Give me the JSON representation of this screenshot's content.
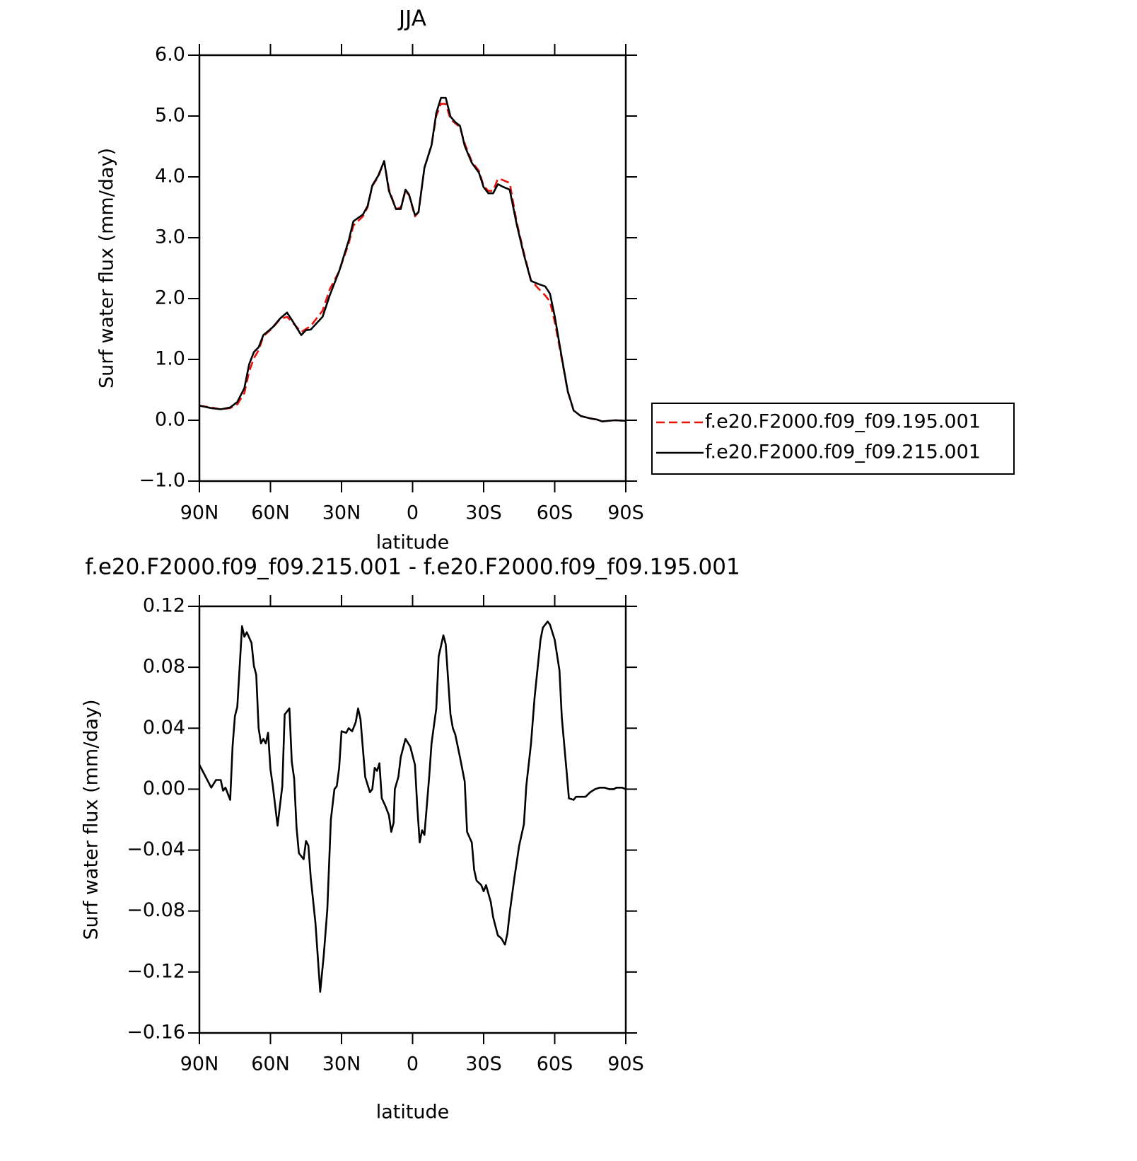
{
  "chart_data": [
    {
      "type": "line",
      "title": "JJA",
      "y_label": "Surf water flux (mm/day)",
      "x_label": "latitude",
      "xlim": [
        90,
        -90
      ],
      "xticks": [
        {
          "value": 90,
          "label": "90N"
        },
        {
          "value": 60,
          "label": "60N"
        },
        {
          "value": 30,
          "label": "30N"
        },
        0,
        {
          "value": -30,
          "label": "30S"
        },
        {
          "value": -60,
          "label": "60S"
        },
        {
          "value": -90,
          "label": "90S"
        }
      ],
      "ylim": [
        -1,
        6
      ],
      "yticks": [
        {
          "value": 6,
          "label": "6.0"
        },
        {
          "value": 5,
          "label": "5.0"
        },
        {
          "value": 4,
          "label": "4.0"
        },
        {
          "value": 3,
          "label": "3.0"
        },
        {
          "value": 2,
          "label": "2.0"
        },
        {
          "value": 1,
          "label": "1.0"
        },
        {
          "value": 0,
          "label": "0.0"
        },
        {
          "value": -1,
          "label": "−1.0"
        }
      ],
      "grid": false,
      "legend": "right",
      "x": [
        90,
        85,
        81,
        77,
        74,
        71,
        69,
        67,
        65,
        63,
        59,
        56,
        53,
        51,
        47,
        45,
        43,
        38,
        35,
        31,
        27,
        25,
        21,
        19,
        17,
        14.5,
        12,
        10,
        7,
        5,
        3,
        1.5,
        -1,
        -2.5,
        -5,
        -8,
        -10,
        -12,
        -14,
        -16,
        -18,
        -20,
        -22,
        -25,
        -28,
        -30,
        -32,
        -34,
        -36,
        -38,
        -41,
        -44,
        -47,
        -50,
        -53,
        -56,
        -58,
        -60,
        -63,
        -65.5,
        -68,
        -71,
        -75,
        -78,
        -80,
        -82.5,
        -85.5,
        -90
      ],
      "series": [
        {
          "name": "f.e20.F2000.f09_f09.195.001",
          "color": "#e8120c",
          "dashed": true,
          "values": [
            0.24,
            0.21,
            0.18,
            0.2,
            0.26,
            0.45,
            0.8,
            1.02,
            1.15,
            1.38,
            1.52,
            1.66,
            1.7,
            1.62,
            1.45,
            1.5,
            1.55,
            1.8,
            2.15,
            2.45,
            2.9,
            3.2,
            3.35,
            3.5,
            3.85,
            4.0,
            4.26,
            3.8,
            3.47,
            3.5,
            3.77,
            3.7,
            3.35,
            3.42,
            4.15,
            4.52,
            5.0,
            5.2,
            5.2,
            4.95,
            4.88,
            4.82,
            4.55,
            4.25,
            4.1,
            3.85,
            3.77,
            3.77,
            3.97,
            3.95,
            3.9,
            3.25,
            2.75,
            2.3,
            2.17,
            2.05,
            1.95,
            1.62,
            1.0,
            0.47,
            0.16,
            0.07,
            0.03,
            0.01,
            -0.02,
            -0.01,
            0,
            -0.01
          ]
        },
        {
          "name": "f.e20.F2000.f09_f09.215.001",
          "color": "#000000",
          "dashed": false,
          "values": [
            0.24,
            0.2,
            0.18,
            0.21,
            0.3,
            0.53,
            0.92,
            1.12,
            1.2,
            1.4,
            1.53,
            1.67,
            1.77,
            1.65,
            1.4,
            1.48,
            1.49,
            1.7,
            2.05,
            2.45,
            2.95,
            3.27,
            3.38,
            3.52,
            3.86,
            4.02,
            4.26,
            3.77,
            3.47,
            3.47,
            3.79,
            3.71,
            3.37,
            3.42,
            4.15,
            4.52,
            5.05,
            5.3,
            5.3,
            4.99,
            4.9,
            4.84,
            4.51,
            4.23,
            4.07,
            3.83,
            3.73,
            3.73,
            3.88,
            3.84,
            3.79,
            3.21,
            2.72,
            2.29,
            2.24,
            2.2,
            2.08,
            1.71,
            1.03,
            0.48,
            0.16,
            0.07,
            0.03,
            0.01,
            -0.02,
            -0.01,
            0,
            -0.01
          ]
        }
      ]
    },
    {
      "type": "line",
      "title": "f.e20.F2000.f09_f09.215.001 - f.e20.F2000.f09_f09.195.001",
      "y_label": "Surf water flux (mm/day)",
      "x_label": "latitude",
      "xlim": [
        90,
        -90
      ],
      "xticks": [
        {
          "value": 90,
          "label": "90N"
        },
        {
          "value": 60,
          "label": "60N"
        },
        {
          "value": 30,
          "label": "30N"
        },
        0,
        {
          "value": -30,
          "label": "30S"
        },
        {
          "value": -60,
          "label": "60S"
        },
        {
          "value": -90,
          "label": "90S"
        }
      ],
      "ylim": [
        -0.16,
        0.12
      ],
      "yticks": [
        {
          "value": 0.12,
          "label": "0.12"
        },
        {
          "value": 0.08,
          "label": "0.08"
        },
        {
          "value": 0.04,
          "label": "0.04"
        },
        {
          "value": 0,
          "label": "0.00"
        },
        {
          "value": -0.04,
          "label": "−0.04"
        },
        {
          "value": -0.08,
          "label": "−0.08"
        },
        {
          "value": -0.12,
          "label": "−0.12"
        },
        {
          "value": -0.16,
          "label": "−0.16"
        }
      ],
      "grid": false,
      "x": [
        90,
        88,
        85,
        83,
        81,
        80,
        79,
        77,
        76,
        75,
        74,
        72,
        71,
        70,
        68,
        67,
        66,
        65,
        64,
        63,
        62,
        61,
        60,
        59,
        57,
        55,
        54,
        52,
        51,
        50,
        49,
        48,
        46,
        45,
        44,
        43,
        41,
        39,
        37.5,
        36,
        34.5,
        33,
        32,
        31,
        30,
        28,
        27,
        25.5,
        24,
        23,
        22,
        20,
        19,
        18,
        17,
        16,
        15,
        14,
        13,
        11.5,
        10,
        9,
        8,
        7.5,
        6,
        5,
        3,
        1,
        -1,
        -2,
        -3,
        -4,
        -5,
        -7,
        -8,
        -10,
        -11,
        -13,
        -14,
        -16,
        -17,
        -18,
        -20,
        -22,
        -23,
        -25,
        -26,
        -27,
        -29,
        -30,
        -31,
        -33,
        -34,
        -36,
        -37.5,
        -39,
        -40,
        -41,
        -43,
        -45,
        -47,
        -48,
        -50,
        -51.5,
        -54,
        -55,
        -57,
        -58,
        -60,
        -62,
        -63,
        -65,
        -66,
        -68,
        -69,
        -71,
        -73,
        -75,
        -77,
        -79,
        -81,
        -83,
        -85,
        -86,
        -88.5,
        -90
      ],
      "series": [
        {
          "color": "#000000",
          "dashed": false,
          "values": [
            0.016,
            0.01,
            0.001,
            0.006,
            0.006,
            -0.001,
            0.001,
            -0.007,
            0.028,
            0.048,
            0.054,
            0.107,
            0.1,
            0.103,
            0.096,
            0.081,
            0.075,
            0.04,
            0.03,
            0.033,
            0.03,
            0.037,
            0.013,
            0.002,
            -0.024,
            0.002,
            0.049,
            0.053,
            0.018,
            0.007,
            -0.025,
            -0.042,
            -0.046,
            -0.034,
            -0.037,
            -0.058,
            -0.088,
            -0.133,
            -0.109,
            -0.079,
            -0.02,
            0.0,
            0.002,
            0.014,
            0.038,
            0.037,
            0.04,
            0.038,
            0.044,
            0.053,
            0.046,
            0.008,
            0.003,
            -0.002,
            0.0,
            0.014,
            0.012,
            0.017,
            -0.006,
            -0.011,
            -0.017,
            -0.028,
            -0.022,
            0.0,
            0.008,
            0.021,
            0.033,
            0.028,
            0.016,
            -0.012,
            -0.035,
            -0.027,
            -0.03,
            0.008,
            0.03,
            0.053,
            0.087,
            0.101,
            0.095,
            0.049,
            0.04,
            0.036,
            0.021,
            0.005,
            -0.028,
            -0.035,
            -0.053,
            -0.06,
            -0.063,
            -0.067,
            -0.063,
            -0.074,
            -0.084,
            -0.096,
            -0.098,
            -0.102,
            -0.095,
            -0.081,
            -0.058,
            -0.037,
            -0.023,
            0.002,
            0.03,
            0.06,
            0.098,
            0.106,
            0.11,
            0.108,
            0.098,
            0.078,
            0.047,
            0.012,
            -0.006,
            -0.007,
            -0.005,
            -0.005,
            -0.005,
            -0.002,
            0.0,
            0.001,
            0.001,
            0.0,
            0.0,
            0.001,
            0.001,
            0.0
          ]
        }
      ]
    }
  ]
}
